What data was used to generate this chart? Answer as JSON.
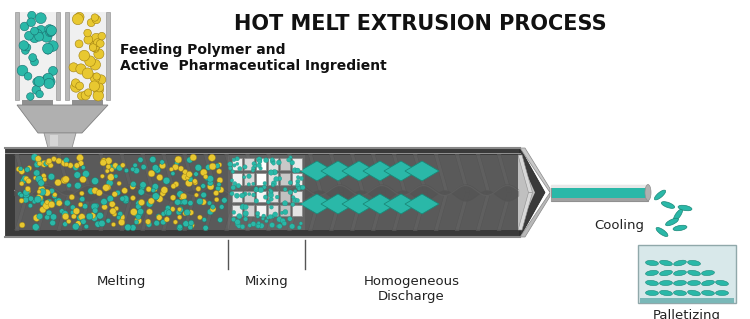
{
  "title": "HOT MELT EXTRUSION PROCESS",
  "title_fontsize": 15,
  "title_fontweight": "bold",
  "background_color": "#ffffff",
  "teal": "#2ab8a8",
  "teal_dark": "#1a8878",
  "teal_light": "#5dd0c0",
  "yellow": "#e8c830",
  "yellow_dark": "#c0a010",
  "gray_light": "#d0d0d0",
  "gray_mid": "#a0a0a0",
  "gray_dark": "#505050",
  "gray_barrel": "#888888",
  "silver": "#c8c8c8",
  "label_melting": "Melting",
  "label_mixing": "Mixing",
  "label_discharge": "Homogeneous\nDischarge",
  "label_cooling": "Cooling",
  "label_palletizing": "Palletizing",
  "label_feeding": "Feeding Polymer and\nActive  Pharmaceutical Ingredient",
  "label_fontsize": 9.5
}
